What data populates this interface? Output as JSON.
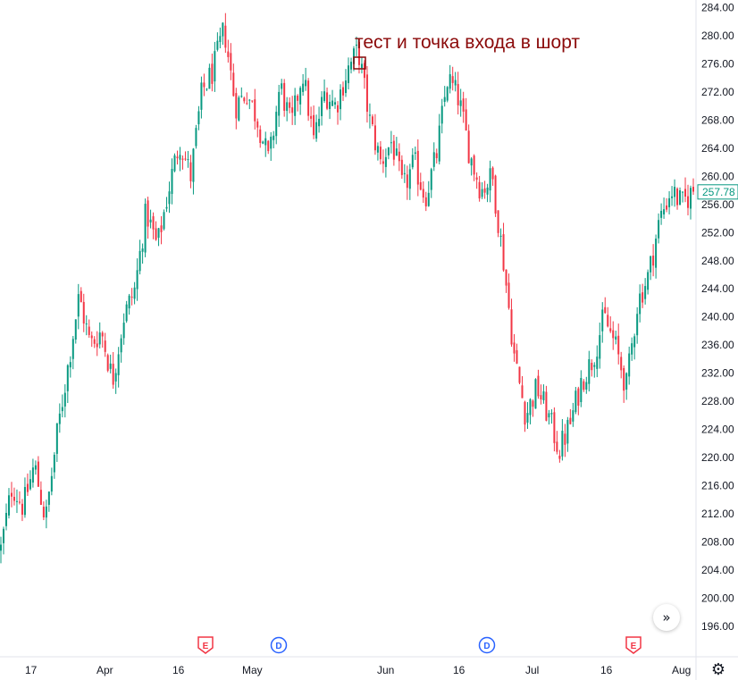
{
  "chart_data": {
    "type": "candlestick",
    "y_axis_position": "right",
    "ylim": [
      194,
      285
    ],
    "y_ticks": [
      196,
      200,
      204,
      208,
      212,
      216,
      220,
      224,
      228,
      232,
      236,
      240,
      244,
      248,
      252,
      256,
      260,
      264,
      268,
      272,
      276,
      280,
      284
    ],
    "y_tick_labels": [
      "196.00",
      "200.00",
      "204.00",
      "208.00",
      "212.00",
      "216.00",
      "220.00",
      "224.00",
      "228.00",
      "232.00",
      "236.00",
      "240.00",
      "244.00",
      "248.00",
      "252.00",
      "256.00",
      "260.00",
      "264.00",
      "268.00",
      "272.00",
      "276.00",
      "280.00",
      "284.00"
    ],
    "x_tick_labels": [
      "17",
      "Apr",
      "16",
      "May",
      "Jun",
      "16",
      "Jul",
      "16",
      "Aug"
    ],
    "last_price": "257.78",
    "annotation": {
      "text": "тест и точка входа в шорт",
      "at_price": 276
    },
    "events": [
      {
        "label": "E",
        "kind": "earnings"
      },
      {
        "label": "D",
        "kind": "dividend"
      },
      {
        "label": "D",
        "kind": "dividend"
      },
      {
        "label": "E",
        "kind": "earnings"
      }
    ],
    "price_path_closes": [
      207,
      216,
      213,
      219,
      211,
      223,
      233,
      243,
      236,
      238,
      231,
      240,
      244,
      255,
      250,
      258,
      265,
      260,
      272,
      275,
      281,
      270,
      272,
      268,
      262,
      273,
      267,
      275,
      265,
      272,
      270,
      275,
      278,
      268,
      262,
      265,
      258,
      262,
      257,
      263,
      274,
      271,
      263,
      258,
      260,
      248,
      234,
      226,
      230,
      226,
      221,
      225,
      231,
      234,
      240,
      236,
      230,
      242,
      246,
      254,
      258,
      256,
      258
    ],
    "colors": {
      "up": "#089981",
      "down": "#f23645",
      "annotation": "#8b0a0a",
      "earnings": "#f23645",
      "dividend": "#2962ff"
    },
    "grid": false
  },
  "ui": {
    "nav_label": "»",
    "settings_icon": "gear-icon"
  }
}
